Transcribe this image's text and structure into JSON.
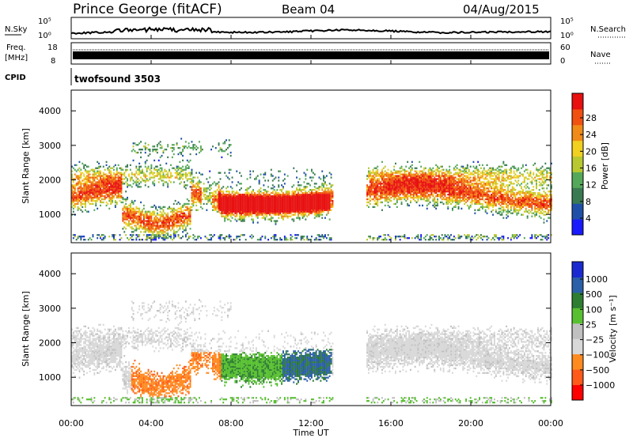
{
  "header": {
    "station": "Prince George (fitACF)",
    "beam": "Beam 04",
    "date": "04/Aug/2015"
  },
  "top_panels": {
    "nsky_label": "N.Sky",
    "nsky_ticks": [
      "10^5",
      "10^0"
    ],
    "nsearch_label": "N.Search",
    "nsearch_ticks": [
      "10^5",
      "10^0"
    ],
    "freq_label": "Freq.",
    "freq_unit": "[MHz]",
    "freq_ticks": [
      "18",
      "8"
    ],
    "nave_label": "Nave",
    "nave_ticks": [
      "60",
      "0"
    ],
    "cpid_label": "CPID",
    "cpid_value": "twofsound 3503"
  },
  "colors": {
    "power_scale": [
      "#1a1aff",
      "#1f4fa8",
      "#3a7a52",
      "#55a85a",
      "#b8c830",
      "#f0d020",
      "#f08a18",
      "#f05010",
      "#e81010"
    ],
    "velocity_scale": [
      "#ff0000",
      "#ff5a1a",
      "#ff8a20",
      "#d8d8d8",
      "#c0c0c0",
      "#58c030",
      "#2e7d32",
      "#2b5fa8",
      "#1a2ad0"
    ]
  },
  "chart_data": [
    {
      "type": "heatmap",
      "panel": "power",
      "xlabel": "",
      "ylabel": "Slant Range [km]",
      "y_ticks": [
        "4000",
        "3000",
        "2000",
        "1000"
      ],
      "ylim": [
        180,
        4600
      ],
      "colorbar_label": "Power [dB]",
      "colorbar_ticks": [
        "28",
        "24",
        "20",
        "16",
        "12",
        "8",
        "4"
      ],
      "clim": [
        0,
        32
      ]
    },
    {
      "type": "heatmap",
      "panel": "velocity",
      "xlabel": "Time UT",
      "ylabel": "Slant Range [km]",
      "y_ticks": [
        "4000",
        "3000",
        "2000",
        "1000"
      ],
      "ylim": [
        180,
        4600
      ],
      "colorbar_label": "Velocity [m s⁻¹]",
      "colorbar_ticks": [
        "1000",
        "500",
        "100",
        "25",
        "−25",
        "−100",
        "−500",
        "−1000"
      ]
    }
  ],
  "time_axis": {
    "ticks": [
      "00:00",
      "04:00",
      "08:00",
      "12:00",
      "16:00",
      "20:00",
      "00:00"
    ],
    "label": "Time UT"
  }
}
